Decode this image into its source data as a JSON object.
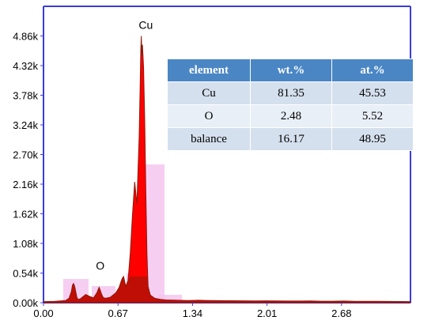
{
  "chart_data": {
    "type": "line",
    "title": "",
    "xlabel": "",
    "ylabel": "",
    "xlim": [
      0.0,
      3.3
    ],
    "ylim": [
      0,
      5400
    ],
    "x_ticks": [
      "0.00",
      "0.67",
      "1.34",
      "2.01",
      "2.68"
    ],
    "x_tick_values": [
      0.0,
      0.67,
      1.34,
      2.01,
      2.68
    ],
    "y_ticks": [
      "0.00k",
      "0.54k",
      "1.08k",
      "1.62k",
      "2.16k",
      "2.70k",
      "3.24k",
      "3.78k",
      "4.32k",
      "4.86k"
    ],
    "y_tick_values": [
      0,
      540,
      1080,
      1620,
      2160,
      2700,
      3240,
      3780,
      4320,
      4860
    ],
    "series": [
      {
        "color": "#ff0000",
        "x": [
          0.0,
          0.1,
          0.2,
          0.23,
          0.25,
          0.26,
          0.27,
          0.28,
          0.29,
          0.3,
          0.31,
          0.33,
          0.38,
          0.42,
          0.45,
          0.48,
          0.5,
          0.51,
          0.52,
          0.53,
          0.54,
          0.56,
          0.6,
          0.65,
          0.68,
          0.7,
          0.71,
          0.72,
          0.74,
          0.76,
          0.78,
          0.8,
          0.82,
          0.84,
          0.86,
          0.87,
          0.875,
          0.88,
          0.885,
          0.89,
          0.9,
          0.91,
          0.92,
          0.93,
          0.94,
          0.96,
          1.0,
          1.05,
          1.1,
          1.2,
          1.3,
          1.4,
          1.5,
          1.6,
          1.7,
          1.8,
          1.9,
          2.0,
          2.1,
          2.2,
          2.3,
          2.4,
          2.5,
          2.6,
          2.7,
          2.8,
          2.9,
          3.0,
          3.1,
          3.2,
          3.3
        ],
        "values": [
          20,
          25,
          40,
          80,
          200,
          320,
          350,
          300,
          200,
          100,
          60,
          70,
          150,
          110,
          90,
          180,
          280,
          230,
          170,
          120,
          90,
          80,
          100,
          180,
          280,
          400,
          450,
          480,
          300,
          400,
          900,
          1600,
          2200,
          1800,
          3000,
          4000,
          4600,
          4860,
          4500,
          4700,
          4300,
          3300,
          2000,
          900,
          300,
          140,
          80,
          60,
          50,
          45,
          40,
          45,
          40,
          38,
          36,
          34,
          32,
          34,
          32,
          30,
          30,
          32,
          28,
          28,
          30,
          26,
          25,
          24,
          23,
          22,
          20
        ]
      }
    ],
    "annotations": [
      {
        "text": "Cu",
        "x": 0.885,
        "y": 4900
      },
      {
        "text": "O",
        "x": 0.5,
        "y": 520
      }
    ]
  },
  "table": {
    "headers": [
      "element",
      "wt.%",
      "at.%"
    ],
    "rows": [
      [
        "Cu",
        "81.35",
        "45.53"
      ],
      [
        "O",
        "2.48",
        "5.52"
      ],
      [
        "balance",
        "16.17",
        "48.95"
      ]
    ]
  },
  "colors": {
    "frame": "#3b3bdc",
    "spectrum_fill": "#ff0000",
    "spectrum_dark": "#8b1a0a",
    "roi_fill": "#f5c6f0",
    "table_header": "#4a86c4",
    "table_row_a": "#d5e0ee",
    "table_row_b": "#e9eff7"
  }
}
